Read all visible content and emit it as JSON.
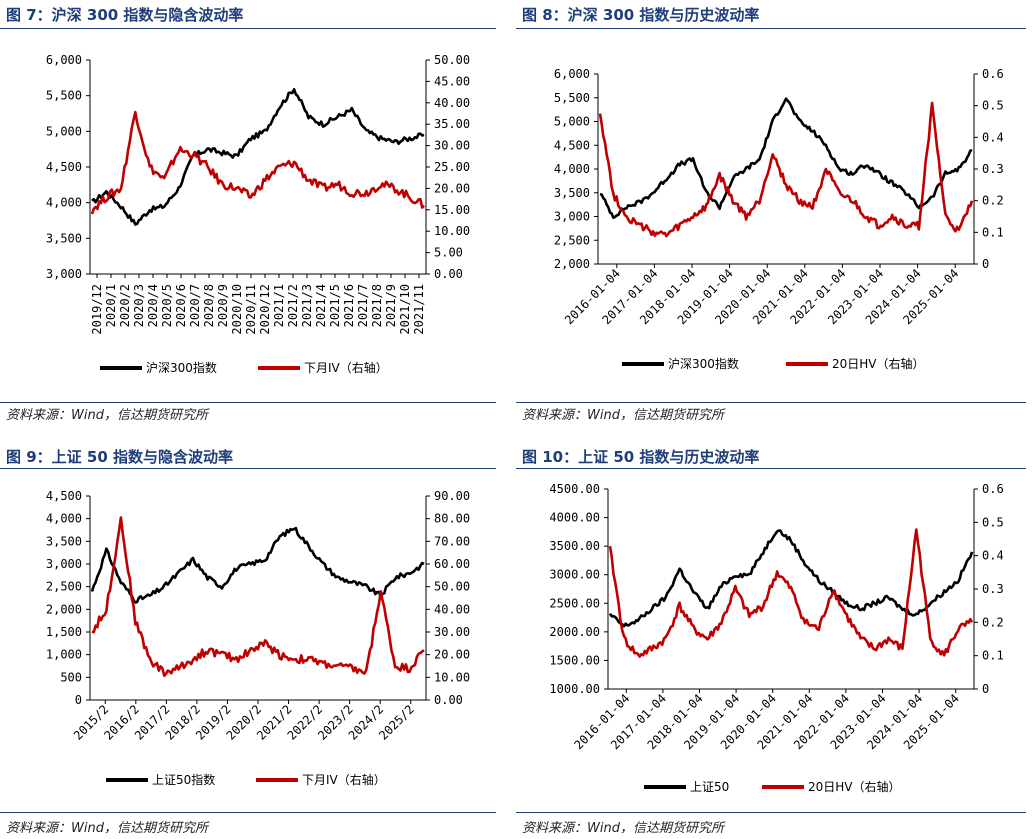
{
  "source_note": "资料来源：Wind，信达期货研究所",
  "chart_data": [
    {
      "id": "fig7",
      "type": "line",
      "title": "图 7：沪深 300 指数与隐含波动率",
      "x_format": "month",
      "xlabels": [
        "2019/12",
        "2020/1",
        "2020/2",
        "2020/3",
        "2020/4",
        "2020/5",
        "2020/6",
        "2020/7",
        "2020/8",
        "2020/9",
        "2020/10",
        "2020/11",
        "2020/12",
        "2021/1",
        "2021/2",
        "2021/3",
        "2021/4",
        "2021/5",
        "2021/6",
        "2021/7",
        "2021/8",
        "2021/9",
        "2021/10",
        "2021/11"
      ],
      "ylim_left": [
        3000,
        6000
      ],
      "yticks_left": [
        "3,000",
        "3,500",
        "4,000",
        "4,500",
        "5,000",
        "5,500",
        "6,000"
      ],
      "ylim_right": [
        0,
        50
      ],
      "yticks_right": [
        "0.00",
        "5.00",
        "10.00",
        "15.00",
        "20.00",
        "25.00",
        "30.00",
        "35.00",
        "40.00",
        "45.00",
        "50.00"
      ],
      "series": [
        {
          "name": "沪深300指数",
          "axis": "left",
          "color": "#000000",
          "values": [
            4000,
            4150,
            3950,
            3700,
            3900,
            3950,
            4200,
            4650,
            4750,
            4700,
            4650,
            4900,
            5000,
            5350,
            5600,
            5200,
            5100,
            5200,
            5300,
            5000,
            4900,
            4850,
            4900,
            4950
          ]
        },
        {
          "name": "下月IV（右轴）",
          "axis": "right",
          "color": "#c00000",
          "values": [
            15,
            18,
            20,
            38,
            25,
            22,
            29,
            28,
            25,
            21,
            20,
            18,
            22,
            25,
            26,
            22,
            20,
            21,
            19,
            19,
            21,
            20,
            18,
            16
          ]
        }
      ]
    },
    {
      "id": "fig8",
      "type": "line",
      "title": "图 8：沪深 300 指数与历史波动率",
      "x_format": "year",
      "xlabels": [
        "2016-01-04",
        "2017-01-04",
        "2018-01-04",
        "2019-01-04",
        "2020-01-04",
        "2021-01-04",
        "2022-01-04",
        "2023-01-04",
        "2024-01-04",
        "2025-01-04"
      ],
      "ylim_left": [
        2000,
        6000
      ],
      "yticks_left": [
        "2,000",
        "2,500",
        "3,000",
        "3,500",
        "4,000",
        "4,500",
        "5,000",
        "5,500",
        "6,000"
      ],
      "ylim_right": [
        0,
        0.6
      ],
      "yticks_right": [
        "0",
        "0.1",
        "0.2",
        "0.3",
        "0.4",
        "0.5",
        "0.6"
      ],
      "series": [
        {
          "name": "沪深300指数",
          "axis": "left",
          "color": "#000000",
          "values": [
            3500,
            3000,
            3200,
            3300,
            3500,
            3800,
            4100,
            4200,
            3500,
            3200,
            3800,
            4000,
            4200,
            5000,
            5500,
            5000,
            4800,
            4500,
            4000,
            3900,
            4100,
            3900,
            3700,
            3500,
            3200,
            3400,
            3900,
            4000,
            4400
          ]
        },
        {
          "name": "20日HV（右轴）",
          "axis": "right",
          "color": "#c00000",
          "values": [
            0.48,
            0.22,
            0.15,
            0.12,
            0.1,
            0.09,
            0.12,
            0.15,
            0.18,
            0.28,
            0.2,
            0.15,
            0.2,
            0.35,
            0.25,
            0.2,
            0.18,
            0.3,
            0.22,
            0.2,
            0.15,
            0.12,
            0.15,
            0.12,
            0.12,
            0.5,
            0.15,
            0.1,
            0.2
          ]
        }
      ]
    },
    {
      "id": "fig9",
      "type": "line",
      "title": "图 9：上证 50 指数与隐含波动率",
      "x_format": "month",
      "xlabels": [
        "2015/2",
        "2016/2",
        "2017/2",
        "2018/2",
        "2019/2",
        "2020/2",
        "2021/2",
        "2022/2",
        "2023/2",
        "2024/2",
        "2025/2"
      ],
      "ylim_left": [
        0,
        4500
      ],
      "yticks_left": [
        "0",
        "500",
        "1,000",
        "1,500",
        "2,000",
        "2,500",
        "3,000",
        "3,500",
        "4,000",
        "4,500"
      ],
      "ylim_right": [
        0,
        90
      ],
      "yticks_right": [
        "0.00",
        "10.00",
        "20.00",
        "30.00",
        "40.00",
        "50.00",
        "60.00",
        "70.00",
        "80.00",
        "90.00"
      ],
      "series": [
        {
          "name": "上证50指数",
          "axis": "left",
          "color": "#000000",
          "values": [
            2400,
            3300,
            2600,
            2200,
            2300,
            2500,
            2800,
            3100,
            2700,
            2500,
            2900,
            3000,
            3100,
            3600,
            3800,
            3400,
            3000,
            2700,
            2600,
            2500,
            2300,
            2700,
            2800,
            3000
          ]
        },
        {
          "name": "下月IV（右轴）",
          "axis": "right",
          "color": "#c00000",
          "values": [
            30,
            40,
            80,
            35,
            18,
            12,
            14,
            18,
            22,
            20,
            18,
            22,
            25,
            20,
            18,
            18,
            16,
            15,
            14,
            12,
            48,
            15,
            14,
            22
          ]
        }
      ]
    },
    {
      "id": "fig10",
      "type": "line",
      "title": "图 10：上证 50 指数与历史波动率",
      "x_format": "year",
      "xlabels": [
        "2016-01-04",
        "2017-01-04",
        "2018-01-04",
        "2019-01-04",
        "2020-01-04",
        "2021-01-04",
        "2022-01-04",
        "2023-01-04",
        "2024-01-04",
        "2025-01-04"
      ],
      "ylim_left": [
        1000,
        4500
      ],
      "yticks_left": [
        "1000.00",
        "1500.00",
        "2000.00",
        "2500.00",
        "3000.00",
        "3500.00",
        "4000.00",
        "4500.00"
      ],
      "ylim_right": [
        0,
        0.6
      ],
      "yticks_right": [
        "0",
        "0.1",
        "0.2",
        "0.3",
        "0.4",
        "0.5",
        "0.6"
      ],
      "series": [
        {
          "name": "上证50",
          "axis": "left",
          "color": "#000000",
          "values": [
            2300,
            2100,
            2200,
            2400,
            2600,
            3100,
            2700,
            2400,
            2800,
            3000,
            3000,
            3400,
            3800,
            3600,
            3200,
            2900,
            2700,
            2500,
            2400,
            2500,
            2600,
            2400,
            2300,
            2500,
            2700,
            2900,
            3400
          ]
        },
        {
          "name": "20日HV（右轴）",
          "axis": "right",
          "color": "#c00000",
          "values": [
            0.42,
            0.15,
            0.1,
            0.12,
            0.15,
            0.25,
            0.18,
            0.15,
            0.2,
            0.3,
            0.22,
            0.25,
            0.35,
            0.3,
            0.2,
            0.18,
            0.3,
            0.22,
            0.15,
            0.12,
            0.15,
            0.12,
            0.48,
            0.15,
            0.1,
            0.18,
            0.2
          ]
        }
      ]
    }
  ]
}
